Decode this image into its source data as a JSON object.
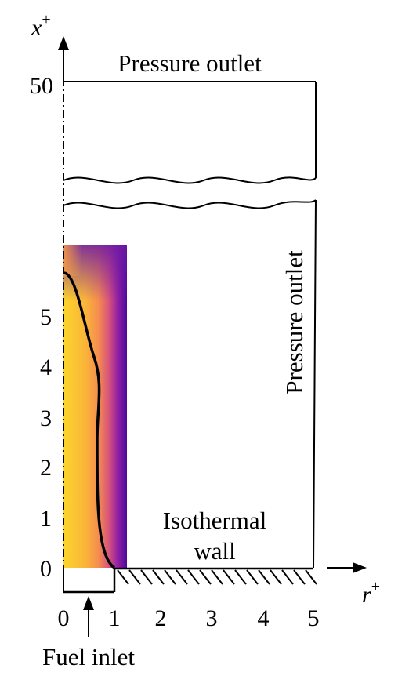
{
  "axes": {
    "x_label": "x",
    "x_label_superscript": "+",
    "r_label": "r",
    "r_label_superscript": "+",
    "x_ticks": [
      "0",
      "1",
      "2",
      "3",
      "4",
      "5"
    ],
    "x_top_tick": "50",
    "r_ticks": [
      "0",
      "1",
      "2",
      "3",
      "4",
      "5"
    ]
  },
  "boundaries": {
    "top": "Pressure outlet",
    "right": "Pressure outlet",
    "bottom_wall_line1": "Isothermal",
    "bottom_wall_line2": "wall",
    "inlet": "Fuel inlet"
  },
  "colormap": {
    "type": "plasma",
    "hot": "#f9e221",
    "mid": "#e2548e",
    "cold": "#4a0d9b"
  }
}
